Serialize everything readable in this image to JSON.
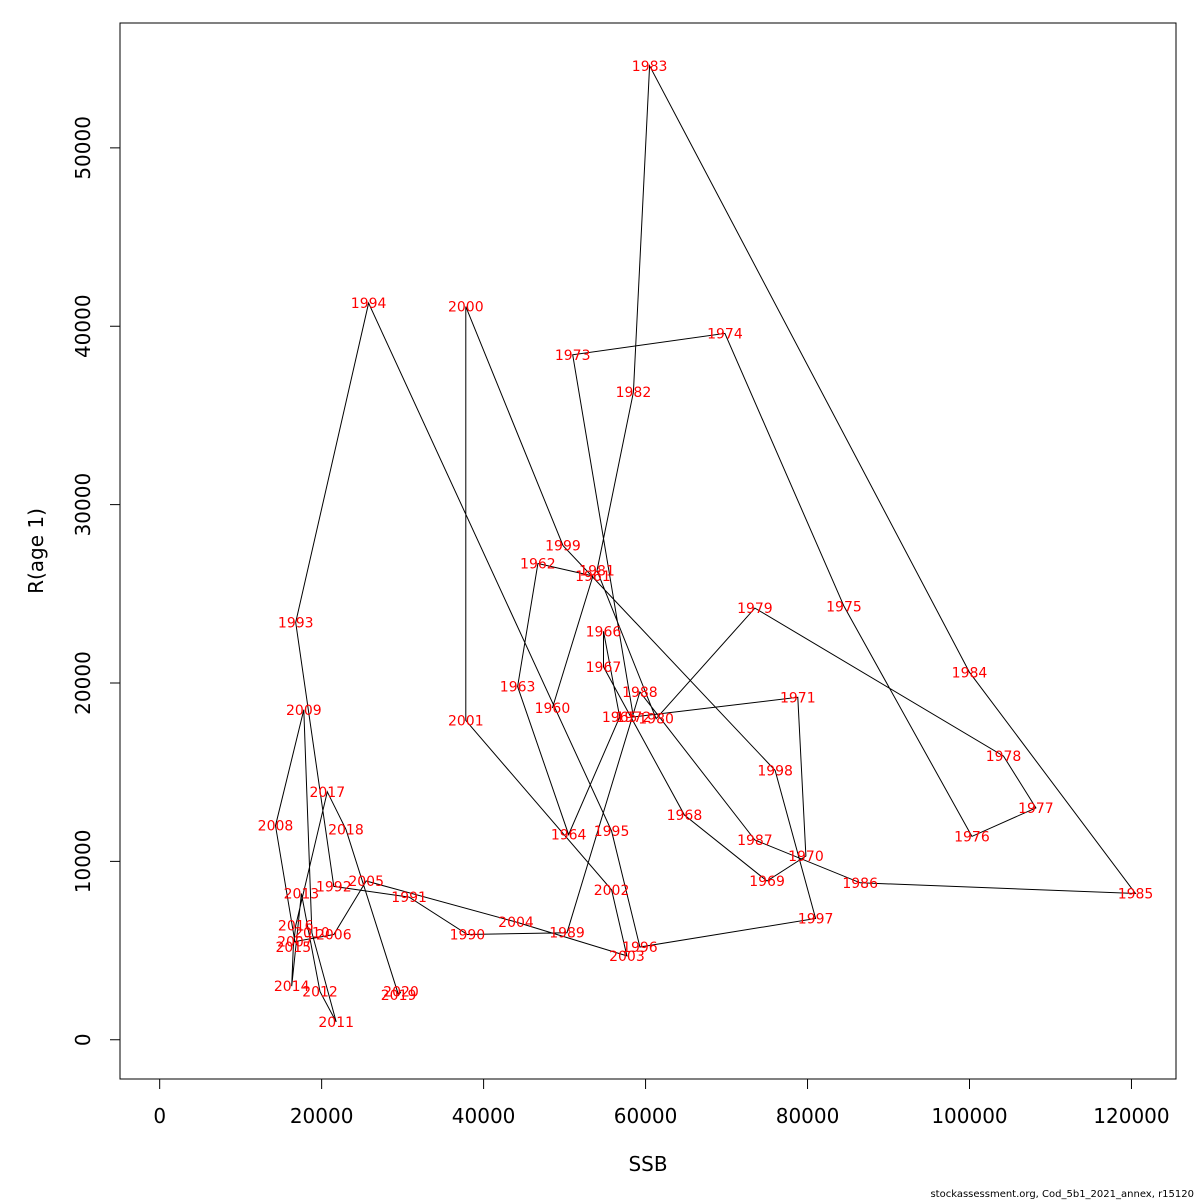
{
  "chart_data": {
    "type": "line",
    "title": "",
    "xlabel": "SSB",
    "ylabel": "R(age 1)",
    "xlim": [
      -4900,
      125500
    ],
    "ylim": [
      -2200,
      57000
    ],
    "xticks": [
      0,
      20000,
      40000,
      60000,
      80000,
      100000,
      120000
    ],
    "xtick_labels": [
      "0",
      "20000",
      "40000",
      "60000",
      "80000",
      "100000",
      "120000"
    ],
    "yticks": [
      0,
      10000,
      20000,
      30000,
      40000,
      50000
    ],
    "ytick_labels": [
      "0",
      "10000",
      "20000",
      "30000",
      "40000",
      "50000"
    ],
    "grid": false,
    "line_color": "#000000",
    "label_color": "#ff0000",
    "credit": "stockassessment.org, Cod_5b1_2021_annex, r15120",
    "points": [
      {
        "year": "1960",
        "ssb": 48500,
        "rec": 18600
      },
      {
        "year": "1961",
        "ssb": 53500,
        "rec": 26000
      },
      {
        "year": "1962",
        "ssb": 46700,
        "rec": 26700
      },
      {
        "year": "1963",
        "ssb": 44200,
        "rec": 19800
      },
      {
        "year": "1964",
        "ssb": 50500,
        "rec": 11500
      },
      {
        "year": "1965",
        "ssb": 56800,
        "rec": 18100
      },
      {
        "year": "1966",
        "ssb": 54800,
        "rec": 22900
      },
      {
        "year": "1967",
        "ssb": 54800,
        "rec": 20900
      },
      {
        "year": "1968",
        "ssb": 64800,
        "rec": 12600
      },
      {
        "year": "1969",
        "ssb": 75000,
        "rec": 8900
      },
      {
        "year": "1970",
        "ssb": 79800,
        "rec": 10300
      },
      {
        "year": "1971",
        "ssb": 78800,
        "rec": 19200
      },
      {
        "year": "1972",
        "ssb": 58500,
        "rec": 18100
      },
      {
        "year": "1973",
        "ssb": 51000,
        "rec": 38400
      },
      {
        "year": "1974",
        "ssb": 69800,
        "rec": 39600
      },
      {
        "year": "1975",
        "ssb": 84500,
        "rec": 24300
      },
      {
        "year": "1976",
        "ssb": 100300,
        "rec": 11400
      },
      {
        "year": "1977",
        "ssb": 108200,
        "rec": 13000
      },
      {
        "year": "1978",
        "ssb": 104200,
        "rec": 15900
      },
      {
        "year": "1979",
        "ssb": 73500,
        "rec": 24200
      },
      {
        "year": "1980",
        "ssb": 61300,
        "rec": 18000
      },
      {
        "year": "1981",
        "ssb": 54000,
        "rec": 26300
      },
      {
        "year": "1982",
        "ssb": 58500,
        "rec": 36300
      },
      {
        "year": "1983",
        "ssb": 60500,
        "rec": 54600
      },
      {
        "year": "1984",
        "ssb": 100000,
        "rec": 20600
      },
      {
        "year": "1985",
        "ssb": 120500,
        "rec": 8200
      },
      {
        "year": "1986",
        "ssb": 86500,
        "rec": 8800
      },
      {
        "year": "1987",
        "ssb": 73500,
        "rec": 11200
      },
      {
        "year": "1988",
        "ssb": 59300,
        "rec": 19500
      },
      {
        "year": "1989",
        "ssb": 50300,
        "rec": 6000
      },
      {
        "year": "1990",
        "ssb": 38000,
        "rec": 5900
      },
      {
        "year": "1991",
        "ssb": 30800,
        "rec": 8000
      },
      {
        "year": "1992",
        "ssb": 21500,
        "rec": 8600
      },
      {
        "year": "1993",
        "ssb": 16800,
        "rec": 23400
      },
      {
        "year": "1994",
        "ssb": 25800,
        "rec": 41300
      },
      {
        "year": "1995",
        "ssb": 55800,
        "rec": 11700
      },
      {
        "year": "1996",
        "ssb": 59300,
        "rec": 5200
      },
      {
        "year": "1997",
        "ssb": 81000,
        "rec": 6800
      },
      {
        "year": "1998",
        "ssb": 76000,
        "rec": 15100
      },
      {
        "year": "1999",
        "ssb": 49800,
        "rec": 27700
      },
      {
        "year": "2000",
        "ssb": 37800,
        "rec": 41100
      },
      {
        "year": "2001",
        "ssb": 37800,
        "rec": 17900
      },
      {
        "year": "2002",
        "ssb": 55800,
        "rec": 8400
      },
      {
        "year": "2003",
        "ssb": 57700,
        "rec": 4700
      },
      {
        "year": "2004",
        "ssb": 44000,
        "rec": 6600
      },
      {
        "year": "2005",
        "ssb": 25500,
        "rec": 8900
      },
      {
        "year": "2006",
        "ssb": 21500,
        "rec": 5900
      },
      {
        "year": "2007",
        "ssb": 16700,
        "rec": 5500
      },
      {
        "year": "2008",
        "ssb": 14300,
        "rec": 12000
      },
      {
        "year": "2009",
        "ssb": 17800,
        "rec": 18500
      },
      {
        "year": "2010",
        "ssb": 18800,
        "rec": 6000
      },
      {
        "year": "2011",
        "ssb": 21800,
        "rec": 1000
      },
      {
        "year": "2012",
        "ssb": 19800,
        "rec": 2700
      },
      {
        "year": "2013",
        "ssb": 17500,
        "rec": 8200
      },
      {
        "year": "2014",
        "ssb": 16300,
        "rec": 3000
      },
      {
        "year": "2015",
        "ssb": 16500,
        "rec": 5200
      },
      {
        "year": "2016",
        "ssb": 16800,
        "rec": 6400
      },
      {
        "year": "2017",
        "ssb": 20700,
        "rec": 13900
      },
      {
        "year": "2018",
        "ssb": 23000,
        "rec": 11800
      },
      {
        "year": "2019",
        "ssb": 29500,
        "rec": 2500
      },
      {
        "year": "2020",
        "ssb": 29800,
        "rec": 2700
      }
    ]
  }
}
